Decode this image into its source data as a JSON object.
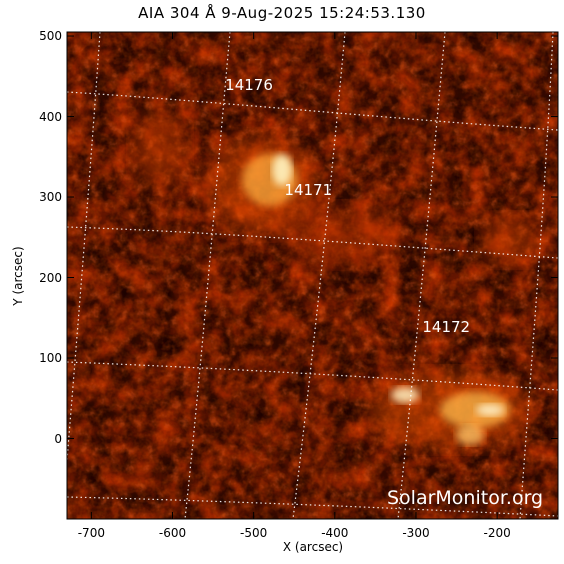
{
  "title": "AIA 304 Å  9-Aug-2025 15:24:53.130",
  "x_axis": {
    "label": "X (arcsec)",
    "range": [
      -730,
      -125
    ],
    "ticks": [
      -700,
      -600,
      -500,
      -400,
      -300,
      -200
    ]
  },
  "y_axis": {
    "label": "Y (arcsec)",
    "range": [
      -100,
      505
    ],
    "ticks": [
      500,
      400,
      300,
      200,
      100,
      0
    ]
  },
  "active_regions": [
    {
      "label": "14176",
      "x": -508,
      "y": 438
    },
    {
      "label": "14171",
      "x": -435,
      "y": 308
    },
    {
      "label": "14172",
      "x": -265,
      "y": 137
    }
  ],
  "watermark": "SolarMonitor.org",
  "colors": {
    "background": "#ffffff",
    "image_dark": "#1a0000",
    "image_mid": "#b02800",
    "image_bright": "#ffd040",
    "grid": "#ffffff"
  },
  "image_type": "solar EUV image with heliographic grid"
}
